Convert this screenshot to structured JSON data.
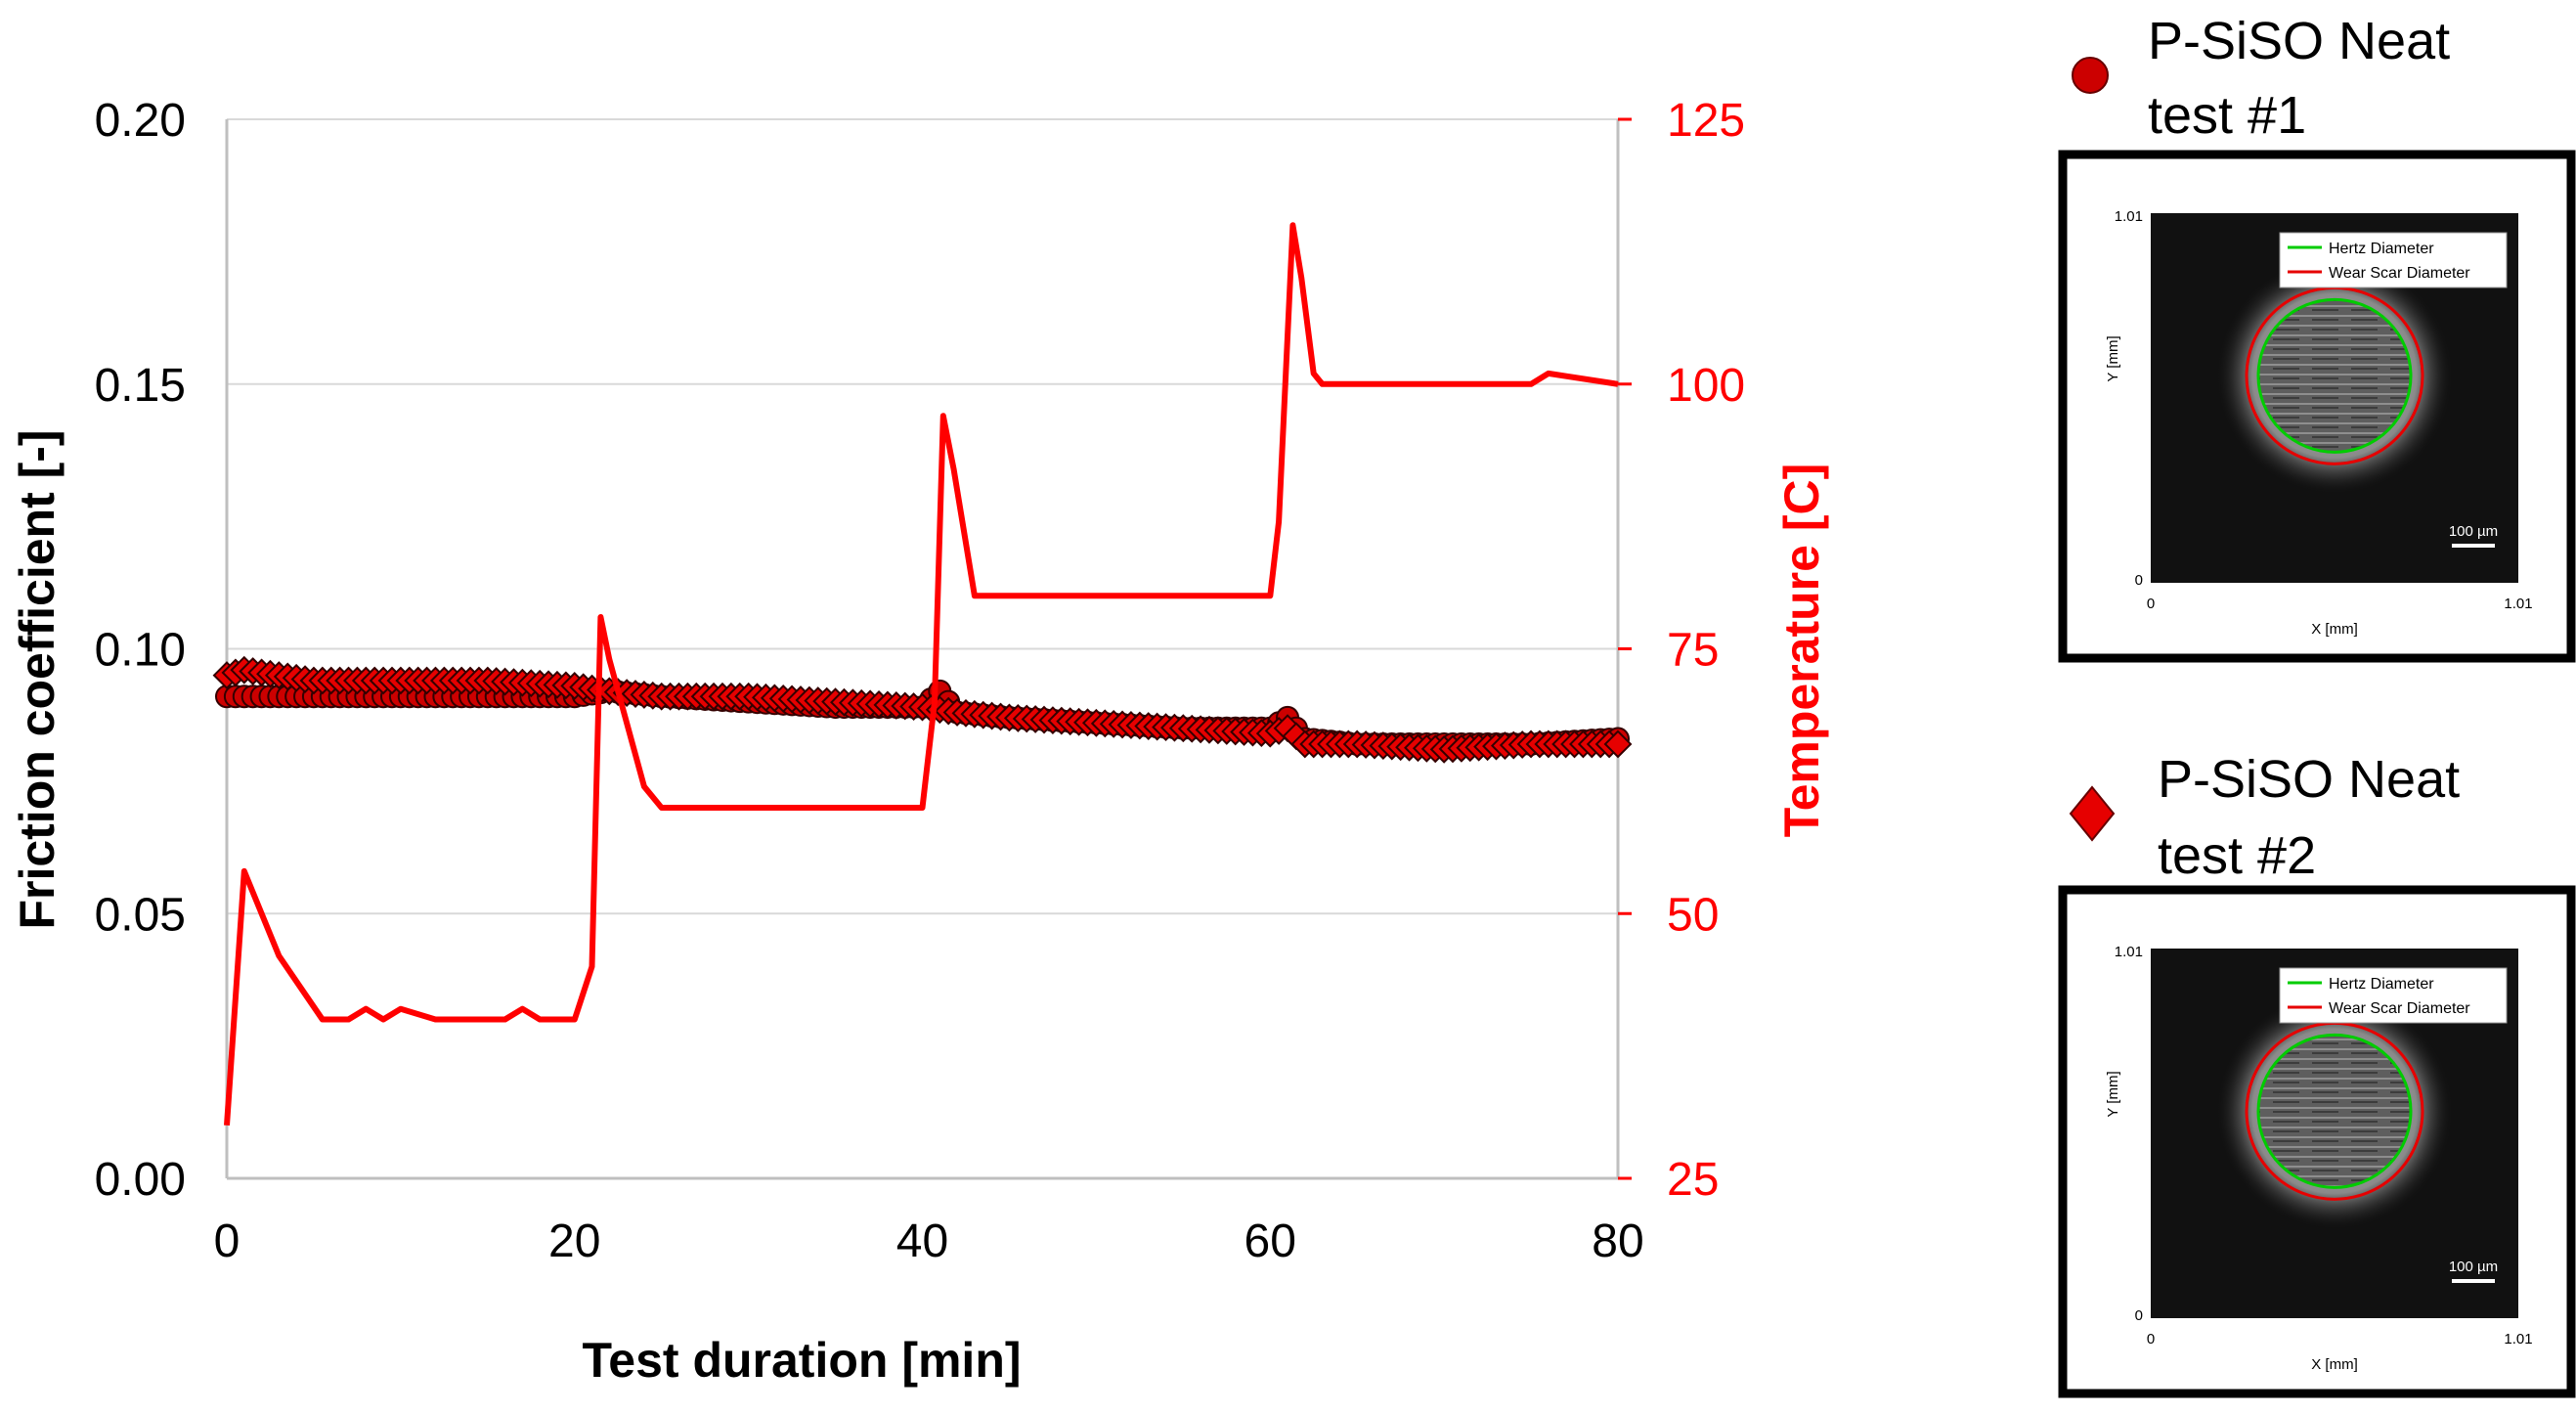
{
  "chart_data": {
    "type": "line",
    "xlabel": "Test duration [min]",
    "ylabel": "Friction coefficient [-]",
    "y2label": "Temperature [C]",
    "xlim": [
      0,
      80
    ],
    "ylim": [
      0,
      0.2
    ],
    "y2lim": [
      25,
      125
    ],
    "xticks": [
      "0",
      "20",
      "40",
      "60",
      "80"
    ],
    "yticks": [
      "0.00",
      "0.05",
      "0.10",
      "0.15",
      "0.20"
    ],
    "y2ticks": [
      "25",
      "50",
      "75",
      "100",
      "125"
    ],
    "grid": "horizontal",
    "colors": {
      "temperature": "#ff0000",
      "test1": "#cc0000",
      "test2": "#e60000",
      "marker_edge": "#330000"
    },
    "series": [
      {
        "name": "P-SiSO Neat test #1",
        "marker": "circle",
        "axis": "left",
        "x": [
          0,
          5,
          10,
          15,
          20,
          22,
          25,
          30,
          35,
          40,
          41,
          42,
          45,
          50,
          55,
          60,
          61,
          62,
          65,
          70,
          75,
          80
        ],
        "y": [
          0.091,
          0.091,
          0.091,
          0.091,
          0.091,
          0.092,
          0.091,
          0.09,
          0.089,
          0.089,
          0.092,
          0.088,
          0.087,
          0.086,
          0.085,
          0.085,
          0.087,
          0.083,
          0.082,
          0.082,
          0.082,
          0.083
        ]
      },
      {
        "name": "P-SiSO Neat test #2",
        "marker": "diamond",
        "axis": "left",
        "x": [
          0,
          1,
          3,
          5,
          10,
          15,
          20,
          22,
          25,
          30,
          35,
          40,
          42,
          45,
          50,
          55,
          60,
          61,
          62,
          65,
          70,
          75,
          80
        ],
        "y": [
          0.095,
          0.096,
          0.095,
          0.094,
          0.094,
          0.094,
          0.093,
          0.092,
          0.091,
          0.091,
          0.09,
          0.089,
          0.088,
          0.087,
          0.086,
          0.085,
          0.084,
          0.085,
          0.082,
          0.082,
          0.081,
          0.082,
          0.082
        ]
      },
      {
        "name": "Temperature",
        "axis": "right",
        "x": [
          0,
          1,
          3,
          5.5,
          7,
          8,
          9,
          10,
          12,
          14,
          16,
          17,
          18,
          20,
          21,
          21.5,
          22,
          24,
          25,
          30,
          35,
          36,
          38,
          40,
          40.7,
          41.2,
          41.8,
          43,
          44,
          48,
          52,
          56,
          59,
          60,
          60.5,
          61.3,
          61.8,
          62.5,
          63,
          65,
          70,
          75,
          76,
          80
        ],
        "y": [
          30,
          54,
          46,
          40,
          40,
          41,
          40,
          41,
          40,
          40,
          40,
          41,
          40,
          40,
          45,
          78,
          74,
          62,
          60,
          60,
          60,
          60,
          60,
          60,
          70,
          97,
          92,
          80,
          80,
          80,
          80,
          80,
          80,
          80,
          87,
          115,
          110,
          101,
          100,
          100,
          100,
          100,
          101,
          100
        ]
      }
    ]
  },
  "legend": [
    {
      "marker": "circle",
      "line1": "P-SiSO Neat",
      "line2": "test #1"
    },
    {
      "marker": "diamond",
      "line1": "P-SiSO Neat",
      "line2": "test #2"
    }
  ],
  "micrographs": [
    {
      "y_top": "1.01",
      "y_zero": "0",
      "x_zero": "0",
      "x_right": "1.01",
      "xlabel": "X [mm]",
      "ylabel": "Y [mm]",
      "hertz_label": "Hertz Diameter",
      "scar_label": "Wear Scar Diameter",
      "scale_label": "100 µm",
      "colors": {
        "hertz": "#00cc00",
        "scar": "#e60000"
      }
    },
    {
      "y_top": "1.01",
      "y_zero": "0",
      "x_zero": "0",
      "x_right": "1.01",
      "xlabel": "X [mm]",
      "ylabel": "Y [mm]",
      "hertz_label": "Hertz Diameter",
      "scar_label": "Wear Scar Diameter",
      "scale_label": "100 µm",
      "colors": {
        "hertz": "#00cc00",
        "scar": "#e60000"
      }
    }
  ]
}
